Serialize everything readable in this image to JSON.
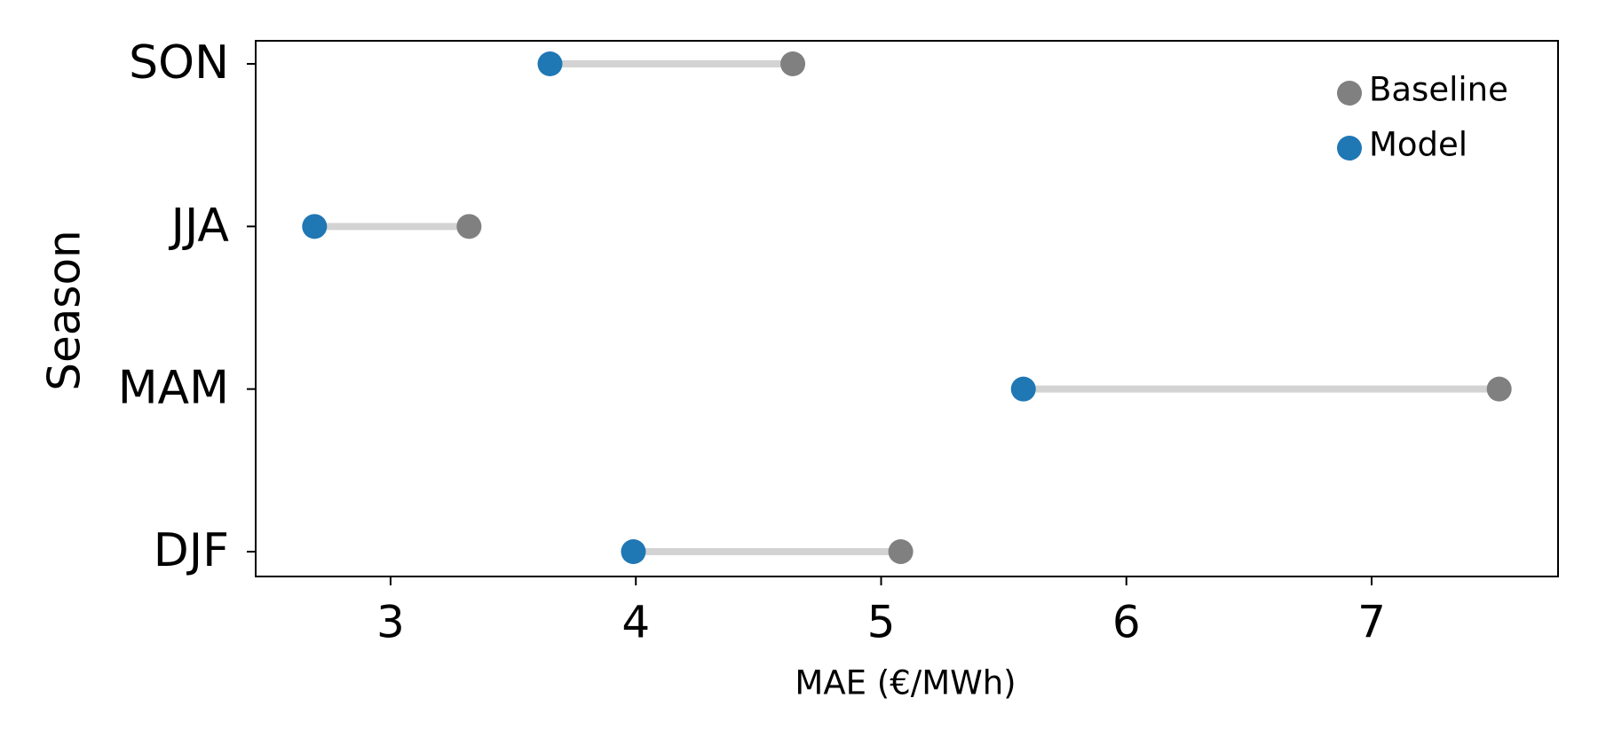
{
  "chart_data": {
    "type": "dumbbell",
    "x_label": "MAE (€/MWh)",
    "y_label": "Season",
    "categories": [
      "DJF",
      "MAM",
      "JJA",
      "SON"
    ],
    "series": [
      {
        "name": "Baseline",
        "color": "#808080",
        "values": [
          5.08,
          7.52,
          3.32,
          4.64
        ]
      },
      {
        "name": "Model",
        "color": "#1f77b4",
        "values": [
          3.99,
          5.58,
          2.69,
          3.65
        ]
      }
    ],
    "connector_color": "#d3d3d3",
    "xlim": [
      2.45,
      7.76
    ],
    "xticks": [
      3,
      4,
      5,
      6,
      7
    ],
    "legend": "upper right"
  }
}
